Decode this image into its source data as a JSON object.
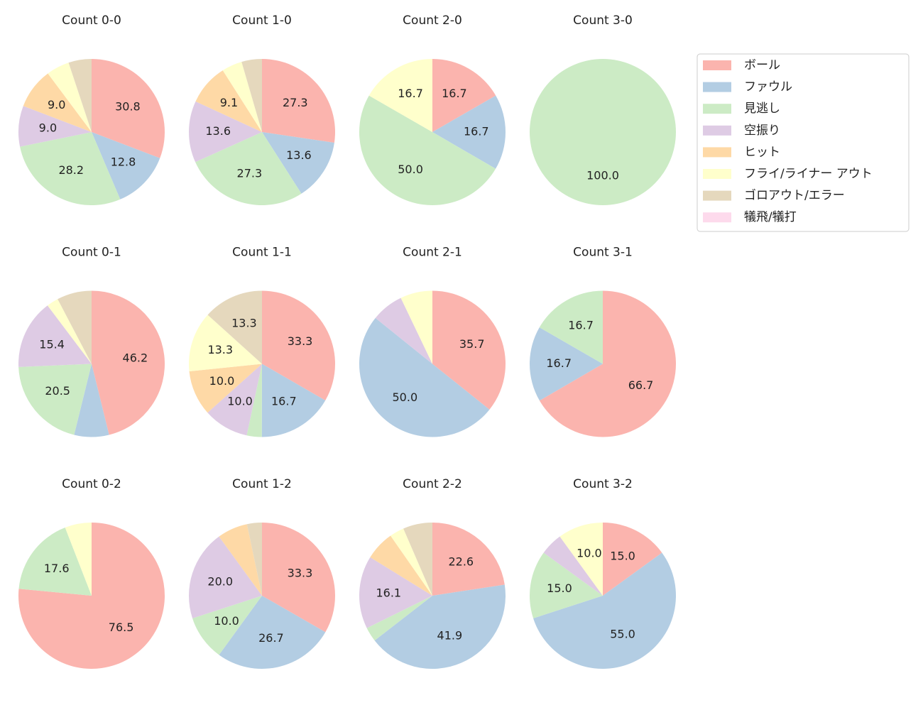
{
  "legend": {
    "labels": [
      "ボール",
      "ファウル",
      "見逃し",
      "空振り",
      "ヒット",
      "フライ/ライナー アウト",
      "ゴロアウト/エラー",
      "犠飛/犠打"
    ],
    "colors": [
      "#fbb4ae",
      "#b3cde3",
      "#ccebc5",
      "#decbe4",
      "#fed9a6",
      "#ffffcc",
      "#e5d8bd",
      "#fddaec"
    ]
  },
  "chart_data": [
    {
      "type": "pie",
      "title": "Count 0-0",
      "values": [
        30.8,
        12.8,
        28.2,
        9.0,
        9.0,
        5.1,
        5.1,
        0
      ],
      "value_labels": [
        "30.8",
        "12.8",
        "28.2",
        "9.0",
        "9.0",
        null,
        null,
        null
      ]
    },
    {
      "type": "pie",
      "title": "Count 1-0",
      "values": [
        27.3,
        13.6,
        27.3,
        13.6,
        9.1,
        4.5,
        4.5,
        0
      ],
      "value_labels": [
        "27.3",
        "13.6",
        "27.3",
        "13.6",
        "9.1",
        null,
        null,
        null
      ]
    },
    {
      "type": "pie",
      "title": "Count 2-0",
      "values": [
        16.7,
        16.7,
        50.0,
        0,
        0,
        16.7,
        0,
        0
      ],
      "value_labels": [
        "16.7",
        "16.7",
        "50.0",
        null,
        null,
        "16.7",
        null,
        null
      ]
    },
    {
      "type": "pie",
      "title": "Count 3-0",
      "values": [
        0,
        0,
        100.0,
        0,
        0,
        0,
        0,
        0
      ],
      "value_labels": [
        null,
        null,
        "100.0",
        null,
        null,
        null,
        null,
        null
      ]
    },
    {
      "type": "pie",
      "title": "Count 0-1",
      "values": [
        46.2,
        7.7,
        20.5,
        15.4,
        0,
        2.6,
        7.7,
        0
      ],
      "value_labels": [
        "46.2",
        null,
        "20.5",
        "15.4",
        null,
        null,
        null,
        null
      ]
    },
    {
      "type": "pie",
      "title": "Count 1-1",
      "values": [
        33.3,
        16.7,
        3.3,
        10.0,
        10.0,
        13.3,
        13.3,
        0
      ],
      "value_labels": [
        "33.3",
        "16.7",
        null,
        "10.0",
        "10.0",
        "13.3",
        "13.3",
        null
      ]
    },
    {
      "type": "pie",
      "title": "Count 2-1",
      "values": [
        35.7,
        50.0,
        0,
        7.1,
        0,
        7.1,
        0,
        0
      ],
      "value_labels": [
        "35.7",
        "50.0",
        null,
        null,
        null,
        null,
        null,
        null
      ]
    },
    {
      "type": "pie",
      "title": "Count 3-1",
      "values": [
        66.7,
        16.7,
        16.7,
        0,
        0,
        0,
        0,
        0
      ],
      "value_labels": [
        "66.7",
        "16.7",
        "16.7",
        null,
        null,
        null,
        null,
        null
      ]
    },
    {
      "type": "pie",
      "title": "Count 0-2",
      "values": [
        76.5,
        0,
        17.6,
        0,
        0,
        5.9,
        0,
        0
      ],
      "value_labels": [
        "76.5",
        null,
        "17.6",
        null,
        null,
        null,
        null,
        null
      ]
    },
    {
      "type": "pie",
      "title": "Count 1-2",
      "values": [
        33.3,
        26.7,
        10.0,
        20.0,
        6.7,
        0,
        3.3,
        0
      ],
      "value_labels": [
        "33.3",
        "26.7",
        "10.0",
        "20.0",
        null,
        null,
        null,
        null
      ]
    },
    {
      "type": "pie",
      "title": "Count 2-2",
      "values": [
        22.6,
        41.9,
        3.2,
        16.1,
        6.5,
        3.2,
        6.5,
        0
      ],
      "value_labels": [
        "22.6",
        "41.9",
        null,
        "16.1",
        null,
        null,
        null,
        null
      ]
    },
    {
      "type": "pie",
      "title": "Count 3-2",
      "values": [
        15.0,
        55.0,
        15.0,
        5.0,
        0,
        10.0,
        0,
        0
      ],
      "value_labels": [
        "15.0",
        "55.0",
        "15.0",
        null,
        null,
        "10.0",
        null,
        null
      ]
    }
  ]
}
